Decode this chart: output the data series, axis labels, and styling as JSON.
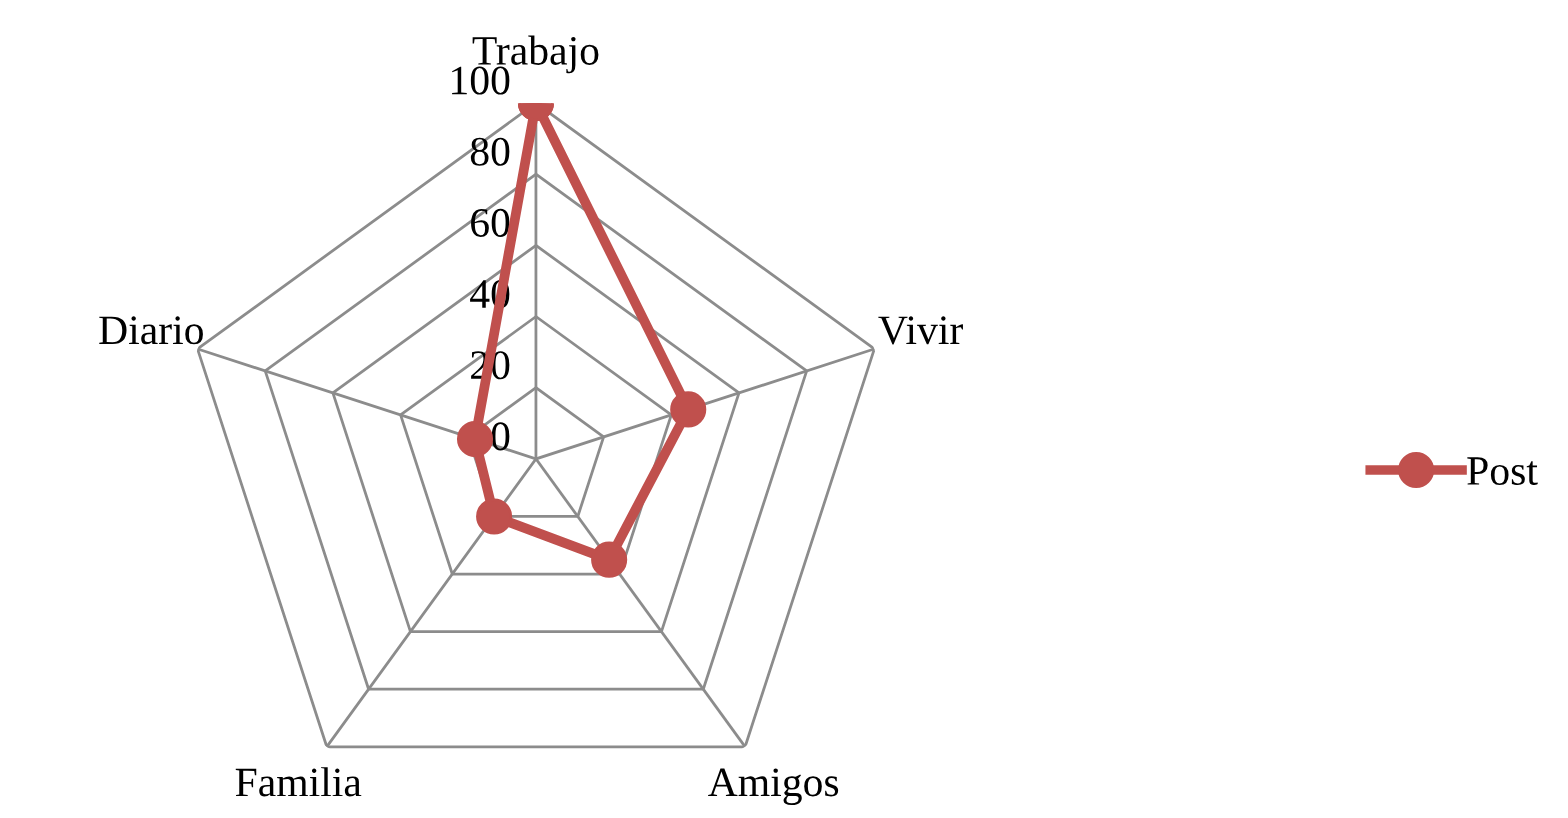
{
  "chart_data": {
    "type": "radar",
    "categories": [
      "Trabajo",
      "Vivir",
      "Amigos",
      "Familia",
      "Diario"
    ],
    "series": [
      {
        "name": "Post",
        "color": "#c0504d",
        "values": [
          100,
          45,
          35,
          20,
          18
        ]
      }
    ],
    "ylim": [
      0,
      100
    ],
    "yticks": [
      0,
      20,
      40,
      60,
      80,
      100
    ],
    "grid": true,
    "legend": "right",
    "marker": "circle",
    "line_style": "solid"
  }
}
